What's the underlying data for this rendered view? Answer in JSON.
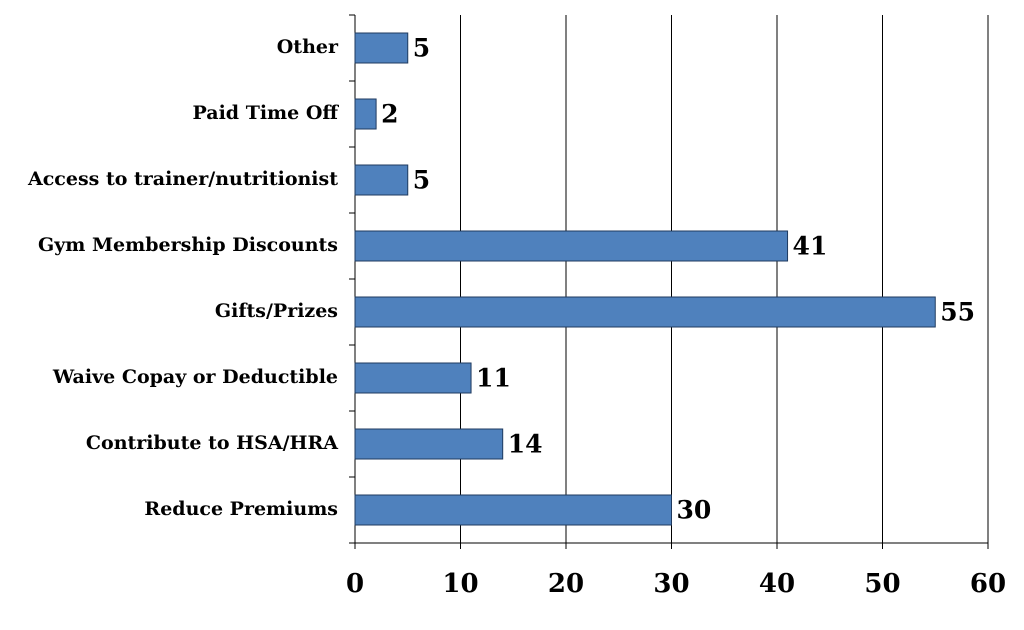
{
  "chart_data": {
    "type": "bar",
    "orientation": "horizontal",
    "categories": [
      "Other",
      "Paid Time Off",
      "Access to trainer/nutritionist",
      "Gym Membership Discounts",
      "Gifts/Prizes",
      "Waive Copay or Deductible",
      "Contribute to HSA/HRA",
      "Reduce Premiums"
    ],
    "values": [
      5,
      2,
      5,
      41,
      55,
      11,
      14,
      30
    ],
    "color": "#4f81bd",
    "xlim": [
      0,
      60
    ],
    "xticks": [
      0,
      10,
      20,
      30,
      40,
      50,
      60
    ],
    "grid": true
  }
}
